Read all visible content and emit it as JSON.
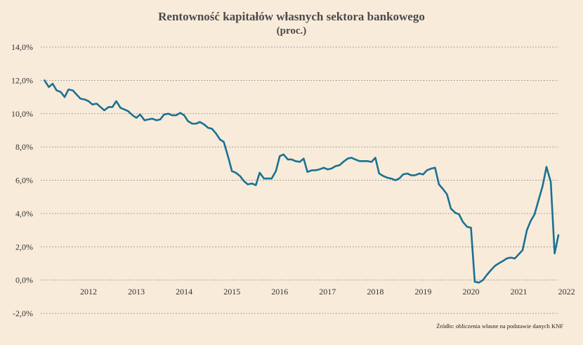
{
  "chart_data": {
    "type": "line",
    "title": "Rentowność kapitałów własnych sektora bankowego",
    "subtitle": "(proc.)",
    "source": "Źródło: obliczenia własne na podstawie danych KNF",
    "xlabel": "",
    "ylabel": "",
    "x_tick_labels": [
      "2012",
      "2013",
      "2014",
      "2015",
      "2016",
      "2017",
      "2018",
      "2019",
      "2020",
      "2021",
      "2022"
    ],
    "x_range": [
      2011.5,
      2022.33
    ],
    "ylim": [
      -2,
      14
    ],
    "y_ticks": [
      -2,
      0,
      2,
      4,
      6,
      8,
      10,
      12,
      14
    ],
    "y_tick_labels": [
      "-2,0%",
      "0,0%",
      "2,0%",
      "4,0%",
      "6,0%",
      "8,0%",
      "10,0%",
      "12,0%",
      "14,0%"
    ],
    "grid": true,
    "line_color": "#1a7193",
    "series": [
      {
        "name": "",
        "x": [
          2011.58,
          2011.67,
          2011.75,
          2011.83,
          2011.92,
          2012.0,
          2012.08,
          2012.17,
          2012.25,
          2012.33,
          2012.42,
          2012.5,
          2012.58,
          2012.67,
          2012.75,
          2012.83,
          2012.92,
          2013.0,
          2013.08,
          2013.17,
          2013.25,
          2013.33,
          2013.42,
          2013.5,
          2013.58,
          2013.67,
          2013.75,
          2013.83,
          2013.92,
          2014.0,
          2014.08,
          2014.17,
          2014.25,
          2014.33,
          2014.42,
          2014.5,
          2014.58,
          2014.67,
          2014.75,
          2014.83,
          2014.92,
          2015.0,
          2015.08,
          2015.17,
          2015.25,
          2015.33,
          2015.42,
          2015.5,
          2015.58,
          2015.67,
          2015.75,
          2015.83,
          2015.92,
          2016.0,
          2016.08,
          2016.17,
          2016.25,
          2016.33,
          2016.42,
          2016.5,
          2016.58,
          2016.67,
          2016.75,
          2016.83,
          2016.92,
          2017.0,
          2017.08,
          2017.17,
          2017.25,
          2017.33,
          2017.42,
          2017.5,
          2017.58,
          2017.67,
          2017.75,
          2017.83,
          2017.92,
          2018.0,
          2018.08,
          2018.17,
          2018.25,
          2018.33,
          2018.42,
          2018.5,
          2018.58,
          2018.67,
          2018.75,
          2018.83,
          2018.92,
          2019.0,
          2019.08,
          2019.17,
          2019.25,
          2019.33,
          2019.42,
          2019.5,
          2019.58,
          2019.67,
          2019.75,
          2019.83,
          2019.92,
          2020.0,
          2020.08,
          2020.17,
          2020.25,
          2020.33,
          2020.42,
          2020.5,
          2020.58,
          2020.67,
          2020.75,
          2020.83,
          2020.92,
          2021.0,
          2021.08,
          2021.17,
          2021.25,
          2021.33,
          2021.42,
          2021.5,
          2021.58,
          2021.67,
          2021.75,
          2021.83,
          2021.92,
          2022.0,
          2022.08,
          2022.17,
          2022.25,
          2022.33
        ],
        "y": [
          12.0,
          11.6,
          11.8,
          11.4,
          11.3,
          11.0,
          11.45,
          11.4,
          11.15,
          10.9,
          10.85,
          10.75,
          10.55,
          10.6,
          10.4,
          10.2,
          10.4,
          10.4,
          10.75,
          10.35,
          10.25,
          10.15,
          9.9,
          9.75,
          9.95,
          9.6,
          9.65,
          9.7,
          9.6,
          9.65,
          9.95,
          10.0,
          9.9,
          9.9,
          10.05,
          9.9,
          9.55,
          9.4,
          9.4,
          9.5,
          9.35,
          9.15,
          9.1,
          8.8,
          8.45,
          8.3,
          7.4,
          6.55,
          6.45,
          6.25,
          5.95,
          5.75,
          5.8,
          5.7,
          6.45,
          6.1,
          6.1,
          6.1,
          6.55,
          7.45,
          7.55,
          7.25,
          7.25,
          7.15,
          7.1,
          7.3,
          6.5,
          6.6,
          6.6,
          6.65,
          6.75,
          6.65,
          6.7,
          6.85,
          6.9,
          7.1,
          7.3,
          7.35,
          7.25,
          7.15,
          7.15,
          7.15,
          7.1,
          7.35,
          6.4,
          6.25,
          6.15,
          6.1,
          6.0,
          6.1,
          6.35,
          6.4,
          6.3,
          6.3,
          6.4,
          6.35,
          6.6,
          6.7,
          6.75,
          5.75,
          5.45,
          5.15,
          4.3,
          4.05,
          3.95,
          3.5,
          3.2,
          3.15,
          -0.1,
          -0.15,
          0.0,
          0.3,
          0.6,
          0.85,
          1.0,
          1.15,
          1.3,
          1.35,
          1.3,
          1.55,
          1.8,
          3.0,
          3.55,
          3.95,
          4.85,
          5.65,
          6.8,
          5.9,
          1.6,
          2.7
        ]
      }
    ]
  }
}
